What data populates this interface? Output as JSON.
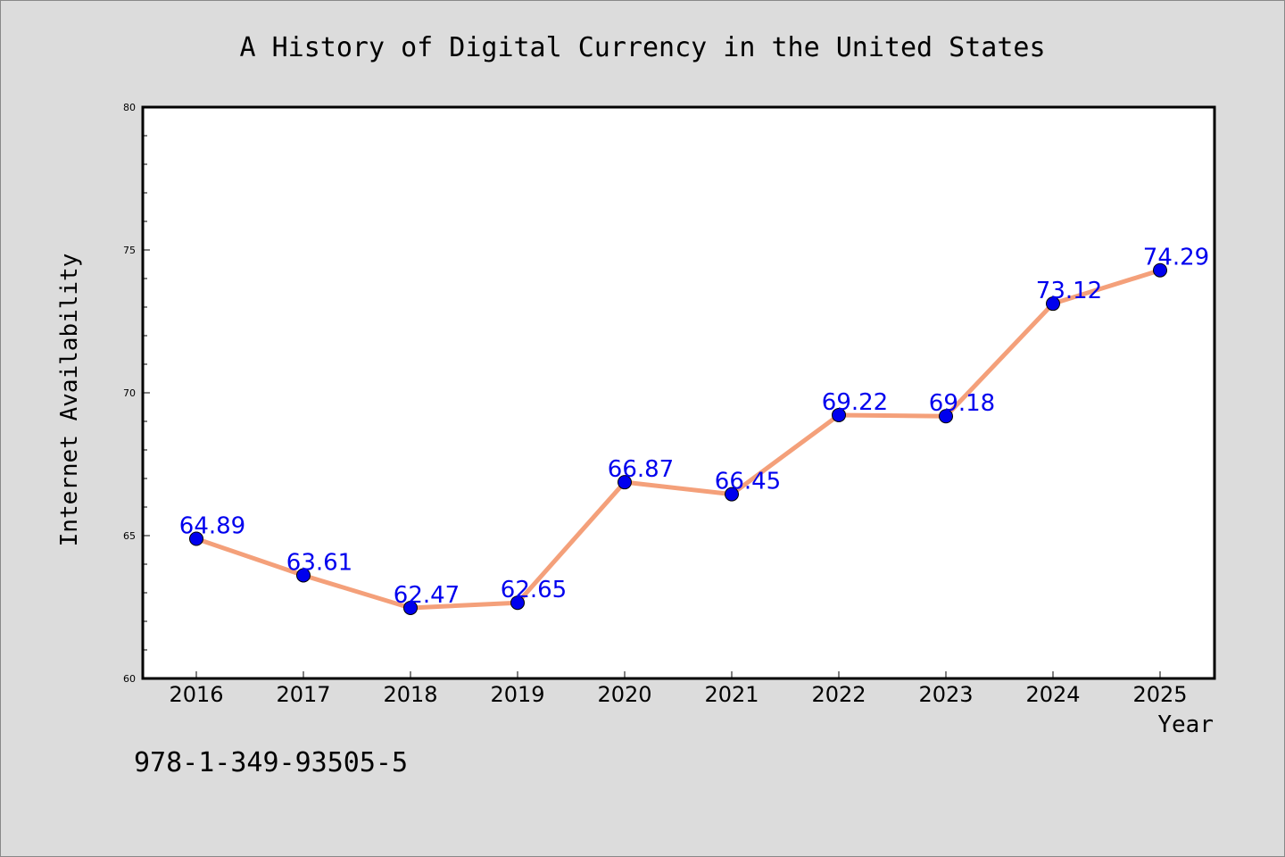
{
  "chart_data": {
    "type": "line",
    "title": "A History of Digital Currency in the United States",
    "xlabel": "Year",
    "ylabel": "Internet Availability",
    "categories": [
      "2016",
      "2017",
      "2018",
      "2019",
      "2020",
      "2021",
      "2022",
      "2023",
      "2024",
      "2025"
    ],
    "series": [
      {
        "values": [
          64.89,
          63.61,
          62.47,
          62.65,
          66.87,
          66.45,
          69.22,
          69.18,
          73.12,
          74.29
        ],
        "data_labels": [
          "64.89",
          "63.61",
          "62.47",
          "62.65",
          "66.87",
          "66.45",
          "69.22",
          "69.18",
          "73.12",
          "74.29"
        ]
      }
    ],
    "ylim": [
      60,
      80
    ],
    "y_ticks": [
      "60",
      "65",
      "70",
      "75",
      "80"
    ],
    "grid": false,
    "line_color": "#f4a07a",
    "marker_color": "#0000ee",
    "label_color": "#0000ee"
  },
  "footer": {
    "isbn": "978-1-349-93505-5"
  }
}
